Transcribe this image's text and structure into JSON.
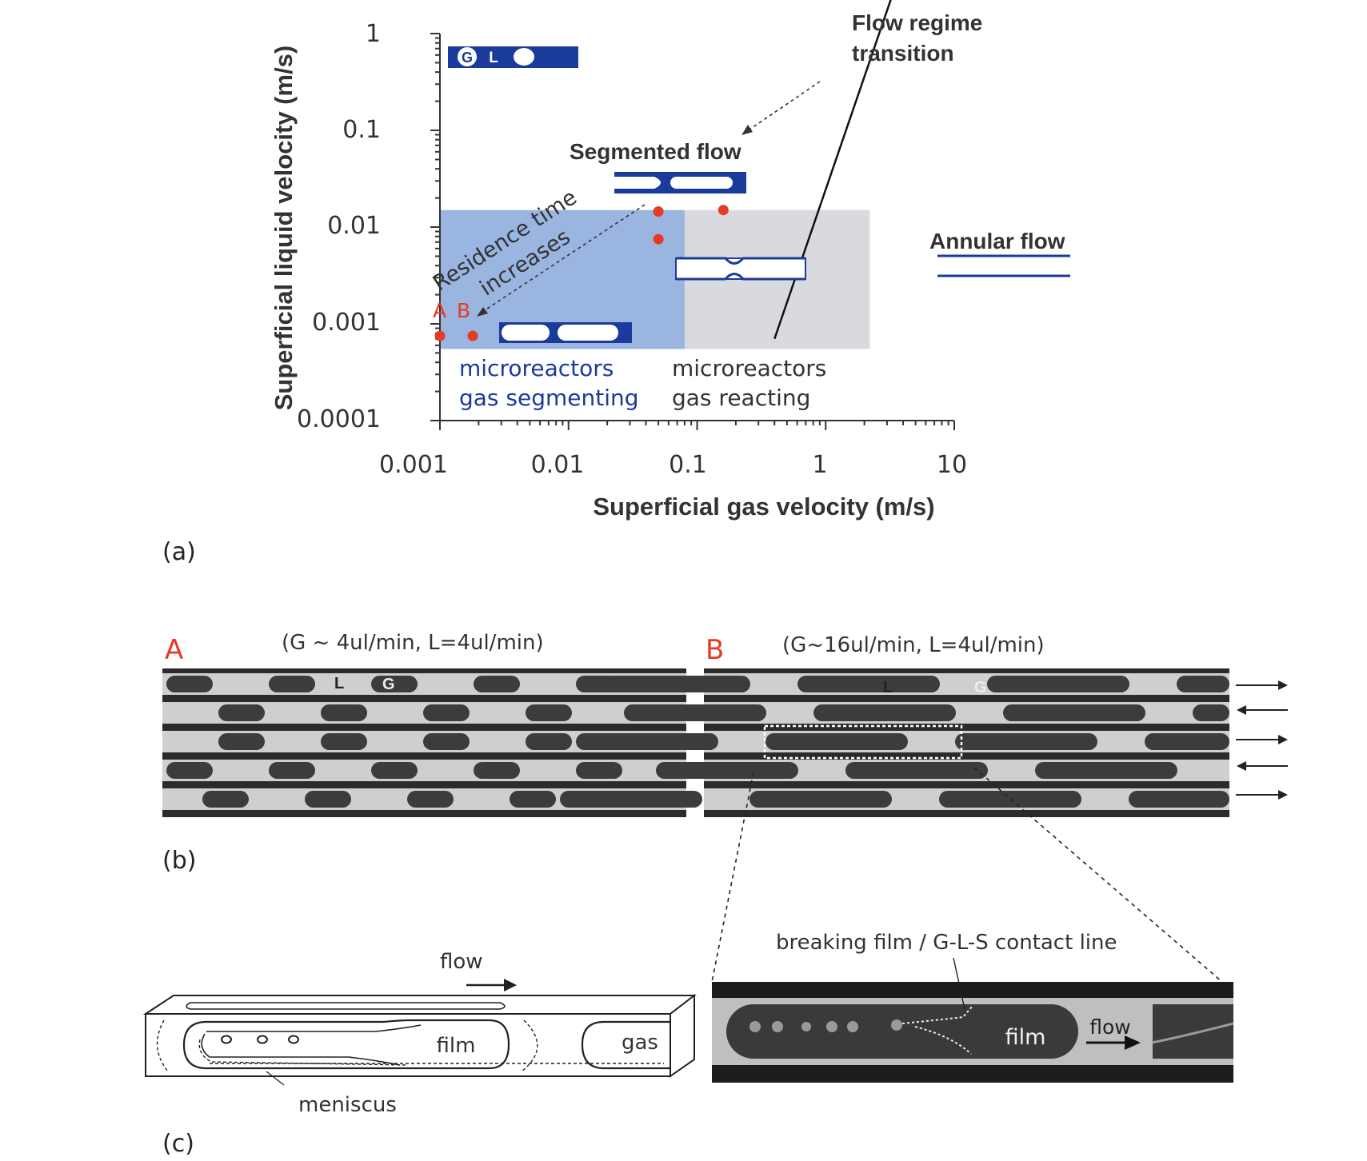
{
  "panel_a": {
    "panel_label": "(a)",
    "y_axis_label": "Superficial liquid velocity (m/s)",
    "x_axis_label": "Superficial gas velocity (m/s)",
    "y_ticks": [
      "1",
      "0.1",
      "0.01",
      "0.001",
      "0.0001"
    ],
    "x_ticks": [
      "0.001",
      "0.01",
      "0.1",
      "1",
      "10"
    ],
    "x_scale": "log",
    "y_scale": "log",
    "x_range": [
      0.001,
      10
    ],
    "y_range": [
      0.0001,
      1
    ],
    "label_flow_regime_line1": "Flow regime",
    "label_flow_regime_line2": "transition",
    "label_segmented_flow": "Segmented flow",
    "label_annular_flow": "Annular flow",
    "label_residence_line1": "Residence time",
    "label_residence_line2": "increases",
    "label_point_a": "A",
    "label_point_b": "B",
    "icon_letter_g": "G",
    "icon_letter_l": "L",
    "segmenting_line1": "microreactors",
    "segmenting_line2": "gas segmenting",
    "reacting_line1": "microreactors",
    "reacting_line2": "gas reacting",
    "colors": {
      "segmenting_region": "#99b5e0",
      "reacting_region": "#d9dae0",
      "channel_blue": "#1a3a9c",
      "point_red": "#e53a24",
      "red_label": "#e53a24"
    },
    "points": [
      {
        "name": "A",
        "x": 0.001,
        "y": 0.00075
      },
      {
        "name": "B",
        "x": 0.0018,
        "y": 0.00075
      },
      {
        "name": "",
        "x": 0.05,
        "y": 0.0145
      },
      {
        "name": "",
        "x": 0.05,
        "y": 0.0075
      },
      {
        "name": "",
        "x": 0.16,
        "y": 0.015
      }
    ],
    "transition_line": [
      {
        "x": 0.4,
        "y": 0.0007
      },
      {
        "x": 3.6,
        "y": 3.5
      }
    ],
    "regions": [
      {
        "name": "segmenting",
        "x": [
          0.001,
          0.08
        ],
        "y": [
          0.00055,
          0.015
        ]
      },
      {
        "name": "reacting",
        "x": [
          0.08,
          2.2
        ],
        "y": [
          0.00055,
          0.015
        ]
      }
    ]
  },
  "panel_b": {
    "panel_label": "(b)",
    "a_letter": "A",
    "a_title": "(G ~ 4ul/min, L=4ul/min)",
    "b_letter": "B",
    "b_title": "(G~16ul/min, L=4ul/min)",
    "label_l": "L",
    "label_g": "G",
    "photo_colors": {
      "wall": "#2b2b2b",
      "liquid": "#cfcfcf",
      "gas": "#3c3c3c"
    }
  },
  "panel_c": {
    "panel_label": "(c)",
    "flow_label": "flow",
    "film_label": "film",
    "gas_label": "gas",
    "meniscus_label": "meniscus",
    "breaking_film_label": "breaking film / G-L-S contact line",
    "photo_film_label": "film",
    "photo_flow_label": "flow"
  }
}
